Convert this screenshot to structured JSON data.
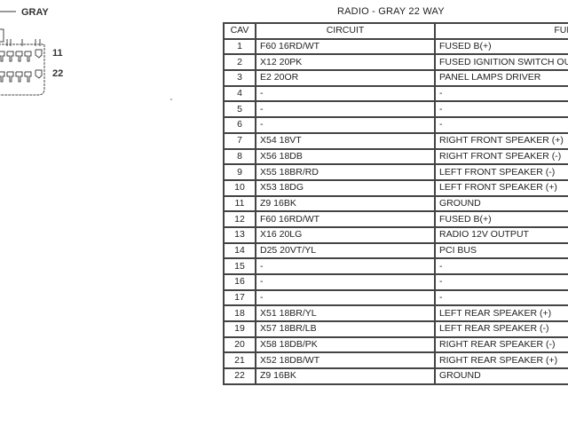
{
  "diagram": {
    "connector_color_label": "GRAY",
    "pin_row_end_labels": [
      "11",
      "22"
    ]
  },
  "title": "RADIO - GRAY 22 WAY",
  "table": {
    "headers": [
      "CAV",
      "CIRCUIT",
      "FUNCTIO"
    ],
    "rows": [
      {
        "cav": "1",
        "circuit": "F60 16RD/WT",
        "function": "FUSED B(+)"
      },
      {
        "cav": "2",
        "circuit": "X12 20PK",
        "function": "FUSED IGNITION SWITCH OUT"
      },
      {
        "cav": "3",
        "circuit": "E2 20OR",
        "function": "PANEL LAMPS DRIVER"
      },
      {
        "cav": "4",
        "circuit": "-",
        "function": "-"
      },
      {
        "cav": "5",
        "circuit": "-",
        "function": "-"
      },
      {
        "cav": "6",
        "circuit": "-",
        "function": "-"
      },
      {
        "cav": "7",
        "circuit": "X54 18VT",
        "function": "RIGHT FRONT SPEAKER (+)"
      },
      {
        "cav": "8",
        "circuit": "X56 18DB",
        "function": "RIGHT FRONT SPEAKER (-)"
      },
      {
        "cav": "9",
        "circuit": "X55 18BR/RD",
        "function": "LEFT FRONT SPEAKER (-)"
      },
      {
        "cav": "10",
        "circuit": "X53 18DG",
        "function": "LEFT FRONT SPEAKER (+)"
      },
      {
        "cav": "11",
        "circuit": "Z9 16BK",
        "function": "GROUND"
      },
      {
        "cav": "12",
        "circuit": "F60 16RD/WT",
        "function": "FUSED B(+)"
      },
      {
        "cav": "13",
        "circuit": "X16 20LG",
        "function": "RADIO 12V OUTPUT"
      },
      {
        "cav": "14",
        "circuit": "D25 20VT/YL",
        "function": "PCI BUS"
      },
      {
        "cav": "15",
        "circuit": "-",
        "function": "-"
      },
      {
        "cav": "16",
        "circuit": "-",
        "function": "-"
      },
      {
        "cav": "17",
        "circuit": "-",
        "function": "-"
      },
      {
        "cav": "18",
        "circuit": "X51 18BR/YL",
        "function": "LEFT REAR SPEAKER (+)"
      },
      {
        "cav": "19",
        "circuit": "X57 18BR/LB",
        "function": "LEFT REAR SPEAKER (-)"
      },
      {
        "cav": "20",
        "circuit": "X58 18DB/PK",
        "function": "RIGHT REAR SPEAKER (-)"
      },
      {
        "cav": "21",
        "circuit": "X52 18DB/WT",
        "function": "RIGHT REAR SPEAKER (+)"
      },
      {
        "cav": "22",
        "circuit": "Z9 16BK",
        "function": "GROUND"
      }
    ]
  }
}
